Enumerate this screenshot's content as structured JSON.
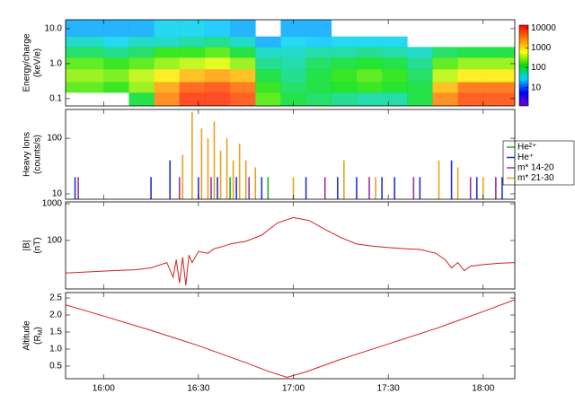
{
  "chart_data": [
    {
      "type": "heatmap",
      "ylabel": "Energy/charge",
      "yunit": "(keV/e)",
      "log_y": true,
      "ylim": [
        0.062,
        18
      ],
      "yticks": [
        0.1,
        {
          "value": 1,
          "label": "1.0"
        },
        {
          "value": 10,
          "label": "10.0"
        }
      ],
      "xlim": [
        948,
        1090
      ],
      "x_edges": [
        948,
        960,
        968,
        976,
        984,
        992,
        1000,
        1008,
        1016,
        1024,
        1032,
        1040,
        1048,
        1056,
        1064,
        1072,
        1080,
        1090
      ],
      "y_edges": [
        0.062,
        0.15,
        0.3,
        0.7,
        1.5,
        3,
        6,
        18
      ],
      "values": [
        [
          null,
          200,
          300,
          200,
          80,
          40,
          20
        ],
        [
          null,
          150,
          250,
          150,
          60,
          30,
          20
        ],
        [
          100,
          300,
          400,
          200,
          80,
          40,
          20
        ],
        [
          3000,
          2000,
          800,
          300,
          150,
          40,
          30
        ],
        [
          8000,
          5000,
          1500,
          400,
          150,
          50,
          30
        ],
        [
          8000,
          6000,
          2000,
          500,
          200,
          60,
          25
        ],
        [
          6000,
          4000,
          1500,
          300,
          100,
          40,
          20
        ],
        [
          200,
          150,
          100,
          60,
          40,
          20,
          null
        ],
        [
          100,
          80,
          60,
          50,
          40,
          30,
          20
        ],
        [
          80,
          100,
          100,
          80,
          50,
          25,
          20
        ],
        [
          60,
          120,
          150,
          100,
          50,
          30,
          null
        ],
        [
          50,
          150,
          200,
          120,
          60,
          30,
          null
        ],
        [
          50,
          120,
          150,
          100,
          50,
          30,
          null
        ],
        [
          100,
          100,
          80,
          60,
          40,
          null,
          null
        ],
        [
          3000,
          1500,
          400,
          200,
          80,
          null,
          null
        ],
        [
          6000,
          4000,
          800,
          300,
          100,
          null,
          null
        ],
        [
          6000,
          4000,
          800,
          300,
          100,
          null,
          null
        ]
      ],
      "colorbar": {
        "clim": [
          1.2,
          14000
        ],
        "ticks": [
          10,
          100,
          1000,
          10000
        ],
        "colormap": [
          "#6a00d0",
          "#0000ff",
          "#00d0ff",
          "#00e000",
          "#ffff00",
          "#ff8000",
          "#ff0000"
        ]
      }
    },
    {
      "type": "bar",
      "ylabel": "Heavy Ions",
      "yunit": "(counts/s)",
      "log_y": true,
      "ylim": [
        8,
        330
      ],
      "yticks": [
        10,
        100
      ],
      "xlim": [
        948,
        1090
      ],
      "legend": "right",
      "series": [
        {
          "name": "He²⁺",
          "color": "#22aa22",
          "x": [
            1000,
            1012
          ],
          "values": [
            20,
            20
          ]
        },
        {
          "name": "He⁺",
          "color": "#2233cc",
          "x": [
            951,
            975,
            981,
            990,
            996,
            1002,
            1010,
            1024,
            1034,
            1040,
            1048,
            1052,
            1060,
            1070,
            1078,
            1086
          ],
          "values": [
            20,
            20,
            40,
            20,
            20,
            20,
            20,
            20,
            20,
            20,
            20,
            20,
            20,
            40,
            20,
            20
          ]
        },
        {
          "name": "m* 14-20",
          "color": "#993399",
          "x": [
            952,
            984,
            994,
            1006,
            1030,
            1044,
            1058,
            1076,
            1084
          ],
          "values": [
            20,
            20,
            20,
            20,
            20,
            20,
            20,
            20,
            20
          ]
        },
        {
          "name": "m* 21-30",
          "color": "#e8a020",
          "x": [
            985,
            988,
            991,
            993,
            995,
            997,
            999,
            1001,
            1003,
            1005,
            1008,
            1020,
            1036,
            1046,
            1066,
            1072,
            1080
          ],
          "values": [
            50,
            300,
            150,
            100,
            200,
            60,
            100,
            40,
            80,
            40,
            30,
            20,
            40,
            20,
            40,
            30,
            20
          ]
        }
      ]
    },
    {
      "type": "line",
      "ylabel": "|B|",
      "yunit": "(nT)",
      "log_y": true,
      "ylim": [
        4.8,
        1120
      ],
      "yticks": [
        100,
        1000
      ],
      "xlim": [
        948,
        1090
      ],
      "color": "#d42020",
      "x": [
        948,
        955,
        962,
        970,
        975,
        980,
        982,
        983,
        984,
        985,
        986,
        987,
        988,
        990,
        993,
        995,
        998,
        1000,
        1005,
        1010,
        1015,
        1020,
        1025,
        1030,
        1035,
        1040,
        1045,
        1050,
        1055,
        1060,
        1065,
        1068,
        1070,
        1072,
        1074,
        1076,
        1080,
        1085,
        1090
      ],
      "values": [
        13,
        14,
        15,
        16,
        18,
        25,
        10,
        30,
        7,
        35,
        6,
        40,
        25,
        50,
        45,
        60,
        70,
        80,
        95,
        140,
        300,
        420,
        350,
        200,
        120,
        80,
        70,
        64,
        60,
        57,
        45,
        30,
        18,
        25,
        15,
        20,
        22,
        24,
        25
      ]
    },
    {
      "type": "line",
      "ylabel": "Altitude",
      "yunit": [
        "(R",
        "M",
        ")"
      ],
      "log_y": false,
      "ylim": [
        0.13,
        2.66
      ],
      "yticks": [
        0.5,
        {
          "value": 1,
          "label": "1.0"
        },
        1.5,
        {
          "value": 2,
          "label": "2.0"
        },
        2.5
      ],
      "xlim": [
        948,
        1090
      ],
      "color": "#d42020",
      "xticks": [
        {
          "value": 960,
          "label": "16:00"
        },
        {
          "value": 990,
          "label": "16:30"
        },
        {
          "value": 1020,
          "label": "17:00"
        },
        {
          "value": 1050,
          "label": "17:30"
        },
        {
          "value": 1080,
          "label": "18:00"
        }
      ],
      "x": [
        948,
        960,
        975,
        990,
        1005,
        1012,
        1018,
        1024,
        1035,
        1050,
        1065,
        1080,
        1090
      ],
      "values": [
        2.3,
        1.97,
        1.55,
        1.1,
        0.6,
        0.35,
        0.17,
        0.33,
        0.7,
        1.15,
        1.6,
        2.1,
        2.45
      ]
    }
  ]
}
